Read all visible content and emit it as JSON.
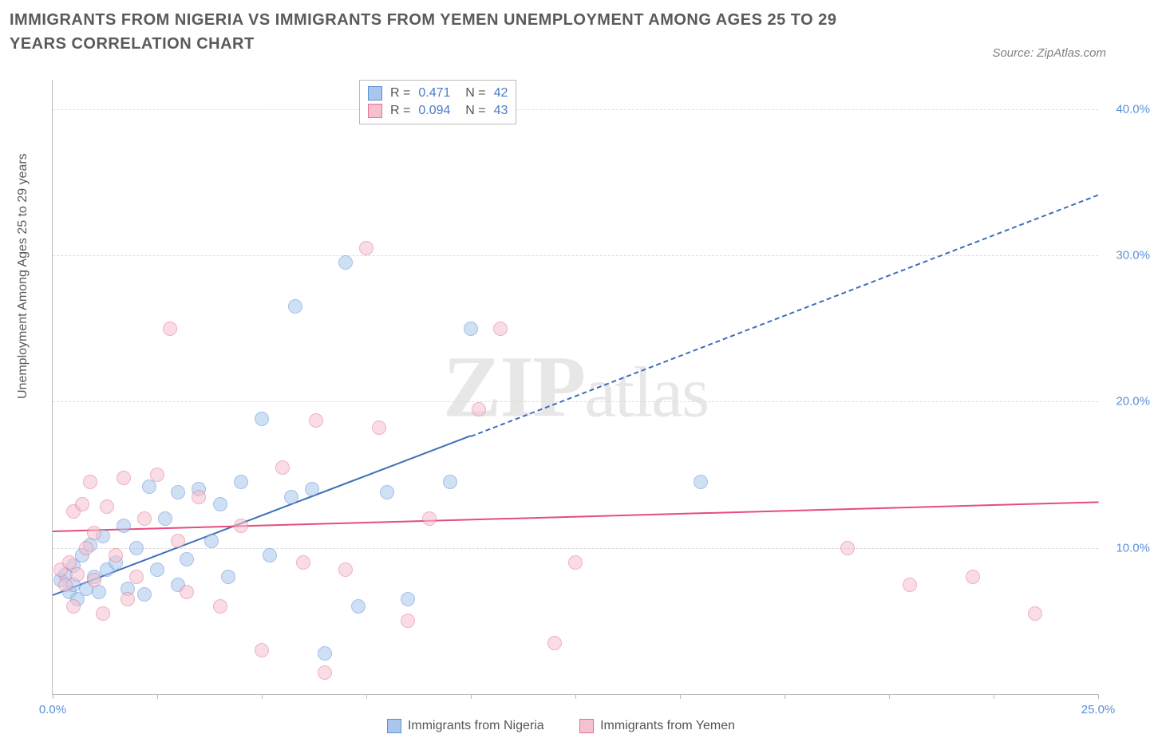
{
  "title": "IMMIGRANTS FROM NIGERIA VS IMMIGRANTS FROM YEMEN UNEMPLOYMENT AMONG AGES 25 TO 29 YEARS CORRELATION CHART",
  "source": "Source: ZipAtlas.com",
  "ylabel": "Unemployment Among Ages 25 to 29 years",
  "watermark": "ZIPatlas",
  "chart": {
    "type": "scatter",
    "background_color": "#ffffff",
    "grid_color": "#dddddd",
    "axis_color": "#bbbbbb",
    "tick_label_color": "#5b8fd8",
    "xlim": [
      0,
      25
    ],
    "ylim": [
      0,
      42
    ],
    "xticks": [
      0,
      2.5,
      5,
      7.5,
      10,
      12.5,
      15,
      17.5,
      20,
      22.5,
      25
    ],
    "xtick_labels": {
      "0": "0.0%",
      "25": "25.0%"
    },
    "yticks": [
      10,
      20,
      30,
      40
    ],
    "ytick_labels": [
      "10.0%",
      "20.0%",
      "30.0%",
      "40.0%"
    ],
    "marker_radius": 9,
    "marker_opacity": 0.55,
    "series": [
      {
        "name": "Immigrants from Nigeria",
        "color_fill": "#a9c7ee",
        "color_stroke": "#5b8fd8",
        "trend_color": "#3d6fb8",
        "R": "0.471",
        "N": "42",
        "trend": {
          "x1": 0,
          "y1": 6.8,
          "x2_solid": 10,
          "y2_solid": 17.7,
          "x2_dash": 25,
          "y2_dash": 34.2
        },
        "points": [
          [
            0.2,
            7.8
          ],
          [
            0.3,
            8.2
          ],
          [
            0.4,
            7.0
          ],
          [
            0.5,
            7.5
          ],
          [
            0.5,
            8.8
          ],
          [
            0.6,
            6.5
          ],
          [
            0.7,
            9.5
          ],
          [
            0.8,
            7.2
          ],
          [
            0.9,
            10.2
          ],
          [
            1.0,
            8.0
          ],
          [
            1.1,
            7.0
          ],
          [
            1.2,
            10.8
          ],
          [
            1.3,
            8.5
          ],
          [
            1.5,
            9.0
          ],
          [
            1.7,
            11.5
          ],
          [
            1.8,
            7.2
          ],
          [
            2.0,
            10.0
          ],
          [
            2.2,
            6.8
          ],
          [
            2.3,
            14.2
          ],
          [
            2.5,
            8.5
          ],
          [
            2.7,
            12.0
          ],
          [
            3.0,
            7.5
          ],
          [
            3.0,
            13.8
          ],
          [
            3.2,
            9.2
          ],
          [
            3.5,
            14.0
          ],
          [
            3.8,
            10.5
          ],
          [
            4.0,
            13.0
          ],
          [
            4.2,
            8.0
          ],
          [
            4.5,
            14.5
          ],
          [
            5.0,
            18.8
          ],
          [
            5.2,
            9.5
          ],
          [
            5.7,
            13.5
          ],
          [
            5.8,
            26.5
          ],
          [
            6.2,
            14.0
          ],
          [
            6.5,
            2.8
          ],
          [
            7.0,
            29.5
          ],
          [
            7.3,
            6.0
          ],
          [
            8.0,
            13.8
          ],
          [
            8.5,
            6.5
          ],
          [
            9.5,
            14.5
          ],
          [
            10.0,
            25.0
          ],
          [
            15.5,
            14.5
          ]
        ]
      },
      {
        "name": "Immigrants from Yemen",
        "color_fill": "#f5c1cf",
        "color_stroke": "#e86f93",
        "trend_color": "#e54d7a",
        "R": "0.094",
        "N": "43",
        "trend": {
          "x1": 0,
          "y1": 11.2,
          "x2_solid": 25,
          "y2_solid": 13.2,
          "x2_dash": 25,
          "y2_dash": 13.2
        },
        "points": [
          [
            0.2,
            8.5
          ],
          [
            0.3,
            7.5
          ],
          [
            0.4,
            9.0
          ],
          [
            0.5,
            12.5
          ],
          [
            0.5,
            6.0
          ],
          [
            0.6,
            8.2
          ],
          [
            0.7,
            13.0
          ],
          [
            0.8,
            10.0
          ],
          [
            0.9,
            14.5
          ],
          [
            1.0,
            7.8
          ],
          [
            1.0,
            11.0
          ],
          [
            1.2,
            5.5
          ],
          [
            1.3,
            12.8
          ],
          [
            1.5,
            9.5
          ],
          [
            1.7,
            14.8
          ],
          [
            1.8,
            6.5
          ],
          [
            2.0,
            8.0
          ],
          [
            2.2,
            12.0
          ],
          [
            2.5,
            15.0
          ],
          [
            2.8,
            25.0
          ],
          [
            3.0,
            10.5
          ],
          [
            3.2,
            7.0
          ],
          [
            3.5,
            13.5
          ],
          [
            4.0,
            6.0
          ],
          [
            4.5,
            11.5
          ],
          [
            5.0,
            3.0
          ],
          [
            5.5,
            15.5
          ],
          [
            6.0,
            9.0
          ],
          [
            6.3,
            18.7
          ],
          [
            6.5,
            1.5
          ],
          [
            7.0,
            8.5
          ],
          [
            7.5,
            30.5
          ],
          [
            7.8,
            18.2
          ],
          [
            8.5,
            5.0
          ],
          [
            9.0,
            12.0
          ],
          [
            10.2,
            19.5
          ],
          [
            10.7,
            25.0
          ],
          [
            12.0,
            3.5
          ],
          [
            12.5,
            9.0
          ],
          [
            19.0,
            10.0
          ],
          [
            20.5,
            7.5
          ],
          [
            22.0,
            8.0
          ],
          [
            23.5,
            5.5
          ]
        ]
      }
    ]
  },
  "legend": {
    "series1_label": "Immigrants from Nigeria",
    "series2_label": "Immigrants from Yemen"
  }
}
